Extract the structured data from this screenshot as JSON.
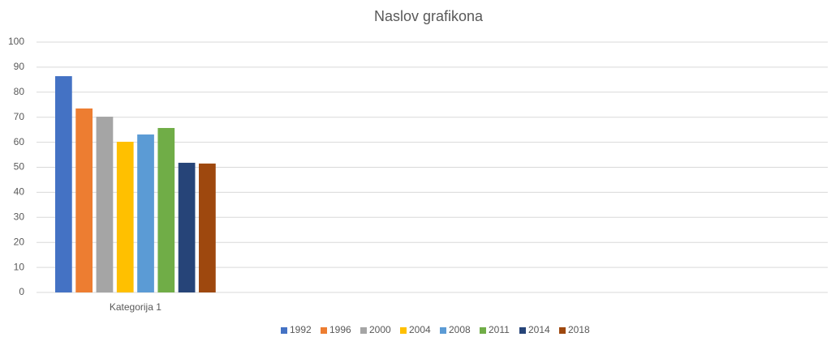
{
  "chart_data": {
    "type": "bar",
    "title": "Naslov grafikona",
    "categories": [
      "Kategorija 1",
      null,
      null,
      null
    ],
    "series": [
      {
        "name": "1992",
        "color": "#4472c4",
        "values": [
          86.4,
          null,
          null,
          null
        ]
      },
      {
        "name": "1996",
        "color": "#ed7d31",
        "values": [
          73.5,
          null,
          null,
          null
        ]
      },
      {
        "name": "2000",
        "color": "#a5a5a5",
        "values": [
          70.2,
          null,
          null,
          null
        ]
      },
      {
        "name": "2004",
        "color": "#ffc000",
        "values": [
          60.2,
          null,
          null,
          null
        ]
      },
      {
        "name": "2008",
        "color": "#5b9bd5",
        "values": [
          63.1,
          null,
          null,
          null
        ]
      },
      {
        "name": "2011",
        "color": "#70ad47",
        "values": [
          65.7,
          null,
          null,
          null
        ]
      },
      {
        "name": "2014",
        "color": "#264478",
        "values": [
          51.8,
          null,
          null,
          null
        ]
      },
      {
        "name": "2018",
        "color": "#9e480e",
        "values": [
          51.5,
          null,
          null,
          null
        ]
      }
    ],
    "ylim": [
      0,
      100
    ],
    "yticks": [
      0,
      10,
      20,
      30,
      40,
      50,
      60,
      70,
      80,
      90,
      100
    ],
    "grid": true,
    "legend": "bottom"
  }
}
